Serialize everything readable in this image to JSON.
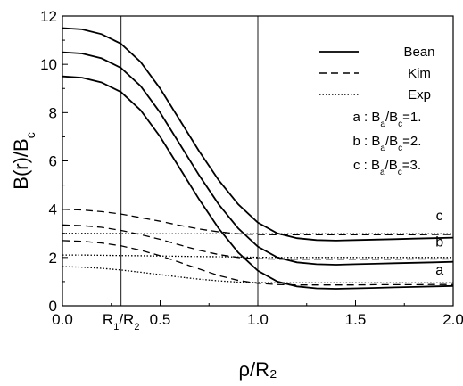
{
  "chart_data": {
    "type": "line",
    "xlabel": "ρ/R₂",
    "ylabel": "B(r)/B",
    "ylabel_sub": "c",
    "xlim": [
      0,
      2
    ],
    "ylim": [
      0,
      12
    ],
    "xticks": [
      {
        "v": 0.0,
        "label": "0.0"
      },
      {
        "v": 0.5,
        "label": "0.5"
      },
      {
        "v": 1.0,
        "label": "1.0"
      },
      {
        "v": 1.5,
        "label": "1.5"
      },
      {
        "v": 2.0,
        "label": "2.0"
      }
    ],
    "yticks": [
      {
        "v": 0,
        "label": "0"
      },
      {
        "v": 2,
        "label": "2"
      },
      {
        "v": 4,
        "label": "4"
      },
      {
        "v": 6,
        "label": "6"
      },
      {
        "v": 8,
        "label": "8"
      },
      {
        "v": 10,
        "label": "10"
      },
      {
        "v": 12,
        "label": "12"
      }
    ],
    "vlines": [
      {
        "x": 0.3,
        "label_main": "R",
        "label_sub1": "1",
        "label_mid": "/R",
        "label_sub2": "2"
      },
      {
        "x": 1.0
      }
    ],
    "legend": {
      "placement": "top-right",
      "entries": [
        {
          "name": "Bean",
          "style": "solid"
        },
        {
          "name": "Kim",
          "style": "dashed"
        },
        {
          "name": "Exp",
          "style": "dotted"
        }
      ],
      "notes": [
        {
          "prefix": "a : B",
          "s1": "a",
          "mid": "/B",
          "s2": "c",
          "suffix": "=1."
        },
        {
          "prefix": "b : B",
          "s1": "a",
          "mid": "/B",
          "s2": "c",
          "suffix": "=2."
        },
        {
          "prefix": "c : B",
          "s1": "a",
          "mid": "/B",
          "s2": "c",
          "suffix": "=3."
        }
      ]
    },
    "annotations": [
      {
        "text": "c",
        "x": 1.93,
        "y": 3.55
      },
      {
        "text": "b",
        "x": 1.93,
        "y": 2.45
      },
      {
        "text": "a",
        "x": 1.93,
        "y": 1.3
      }
    ],
    "series": [
      {
        "group": "a",
        "style": "solid",
        "x": [
          0,
          0.1,
          0.2,
          0.3,
          0.4,
          0.5,
          0.6,
          0.7,
          0.8,
          0.9,
          1.0,
          1.1,
          1.2,
          1.3,
          1.4,
          1.5,
          1.6,
          1.7,
          1.8,
          1.9,
          2.0
        ],
        "y": [
          9.5,
          9.45,
          9.25,
          8.85,
          8.1,
          7.0,
          5.7,
          4.4,
          3.2,
          2.2,
          1.45,
          1.0,
          0.8,
          0.72,
          0.7,
          0.72,
          0.74,
          0.76,
          0.78,
          0.8,
          0.82
        ]
      },
      {
        "group": "b",
        "style": "solid",
        "x": [
          0,
          0.1,
          0.2,
          0.3,
          0.4,
          0.5,
          0.6,
          0.7,
          0.8,
          0.9,
          1.0,
          1.1,
          1.2,
          1.3,
          1.4,
          1.5,
          1.6,
          1.7,
          1.8,
          1.9,
          2.0
        ],
        "y": [
          10.5,
          10.45,
          10.25,
          9.85,
          9.1,
          8.0,
          6.7,
          5.4,
          4.2,
          3.2,
          2.45,
          2.0,
          1.8,
          1.72,
          1.7,
          1.72,
          1.74,
          1.76,
          1.78,
          1.8,
          1.82
        ]
      },
      {
        "group": "c",
        "style": "solid",
        "x": [
          0,
          0.1,
          0.2,
          0.3,
          0.4,
          0.5,
          0.6,
          0.7,
          0.8,
          0.9,
          1.0,
          1.1,
          1.2,
          1.3,
          1.4,
          1.5,
          1.6,
          1.7,
          1.8,
          1.9,
          2.0
        ],
        "y": [
          11.5,
          11.45,
          11.25,
          10.85,
          10.1,
          9.0,
          7.7,
          6.4,
          5.2,
          4.2,
          3.45,
          3.0,
          2.8,
          2.72,
          2.7,
          2.72,
          2.74,
          2.76,
          2.78,
          2.8,
          2.82
        ]
      },
      {
        "group": "a",
        "style": "dashed",
        "x": [
          0,
          0.1,
          0.2,
          0.3,
          0.4,
          0.5,
          0.6,
          0.7,
          0.8,
          0.9,
          1.0,
          1.1,
          1.2,
          1.3,
          1.4,
          1.5,
          1.6,
          1.7,
          1.8,
          1.9,
          2.0
        ],
        "y": [
          2.7,
          2.67,
          2.6,
          2.48,
          2.3,
          2.07,
          1.8,
          1.52,
          1.25,
          1.05,
          0.93,
          0.88,
          0.86,
          0.86,
          0.86,
          0.86,
          0.87,
          0.87,
          0.87,
          0.88,
          0.88
        ]
      },
      {
        "group": "b",
        "style": "dashed",
        "x": [
          0,
          0.1,
          0.2,
          0.3,
          0.4,
          0.5,
          0.6,
          0.7,
          0.8,
          0.9,
          1.0,
          1.1,
          1.2,
          1.3,
          1.4,
          1.5,
          1.6,
          1.7,
          1.8,
          1.9,
          2.0
        ],
        "y": [
          3.35,
          3.32,
          3.25,
          3.12,
          2.95,
          2.75,
          2.52,
          2.3,
          2.12,
          2.0,
          1.95,
          1.93,
          1.93,
          1.93,
          1.93,
          1.93,
          1.93,
          1.93,
          1.94,
          1.94,
          1.94
        ]
      },
      {
        "group": "c",
        "style": "dashed",
        "x": [
          0,
          0.1,
          0.2,
          0.3,
          0.4,
          0.5,
          0.6,
          0.7,
          0.8,
          0.9,
          1.0,
          1.1,
          1.2,
          1.3,
          1.4,
          1.5,
          1.6,
          1.7,
          1.8,
          1.9,
          2.0
        ],
        "y": [
          4.0,
          3.97,
          3.9,
          3.8,
          3.65,
          3.5,
          3.33,
          3.18,
          3.06,
          2.98,
          2.95,
          2.94,
          2.94,
          2.94,
          2.94,
          2.94,
          2.94,
          2.94,
          2.94,
          2.95,
          2.95
        ]
      },
      {
        "group": "a",
        "style": "dotted",
        "x": [
          0,
          0.1,
          0.2,
          0.3,
          0.4,
          0.5,
          0.6,
          0.7,
          0.8,
          0.9,
          1.0,
          1.1,
          1.2,
          1.3,
          1.4,
          1.5,
          1.6,
          1.7,
          1.8,
          1.9,
          2.0
        ],
        "y": [
          1.62,
          1.6,
          1.55,
          1.48,
          1.39,
          1.29,
          1.19,
          1.1,
          1.03,
          0.98,
          0.96,
          0.95,
          0.95,
          0.95,
          0.95,
          0.95,
          0.95,
          0.95,
          0.95,
          0.95,
          0.95
        ]
      },
      {
        "group": "b",
        "style": "dotted",
        "x": [
          0,
          0.1,
          0.2,
          0.3,
          0.4,
          0.5,
          0.6,
          0.7,
          0.8,
          0.9,
          1.0,
          1.1,
          1.2,
          1.3,
          1.4,
          1.5,
          1.6,
          1.7,
          1.8,
          1.9,
          2.0
        ],
        "y": [
          2.1,
          2.1,
          2.09,
          2.08,
          2.07,
          2.06,
          2.05,
          2.04,
          2.03,
          2.02,
          2.01,
          2.0,
          2.0,
          2.0,
          2.0,
          2.0,
          2.0,
          2.0,
          2.0,
          2.0,
          2.0
        ]
      },
      {
        "group": "c",
        "style": "dotted",
        "x": [
          0,
          0.1,
          0.2,
          0.3,
          0.4,
          0.5,
          0.6,
          0.7,
          0.8,
          0.9,
          1.0,
          1.1,
          1.2,
          1.3,
          1.4,
          1.5,
          1.6,
          1.7,
          1.8,
          1.9,
          2.0
        ],
        "y": [
          3.0,
          3.0,
          2.99,
          2.99,
          2.98,
          2.98,
          2.98,
          2.98,
          2.98,
          2.98,
          2.98,
          2.98,
          2.98,
          2.98,
          2.98,
          2.98,
          2.98,
          2.98,
          2.98,
          2.98,
          2.98
        ]
      }
    ]
  }
}
